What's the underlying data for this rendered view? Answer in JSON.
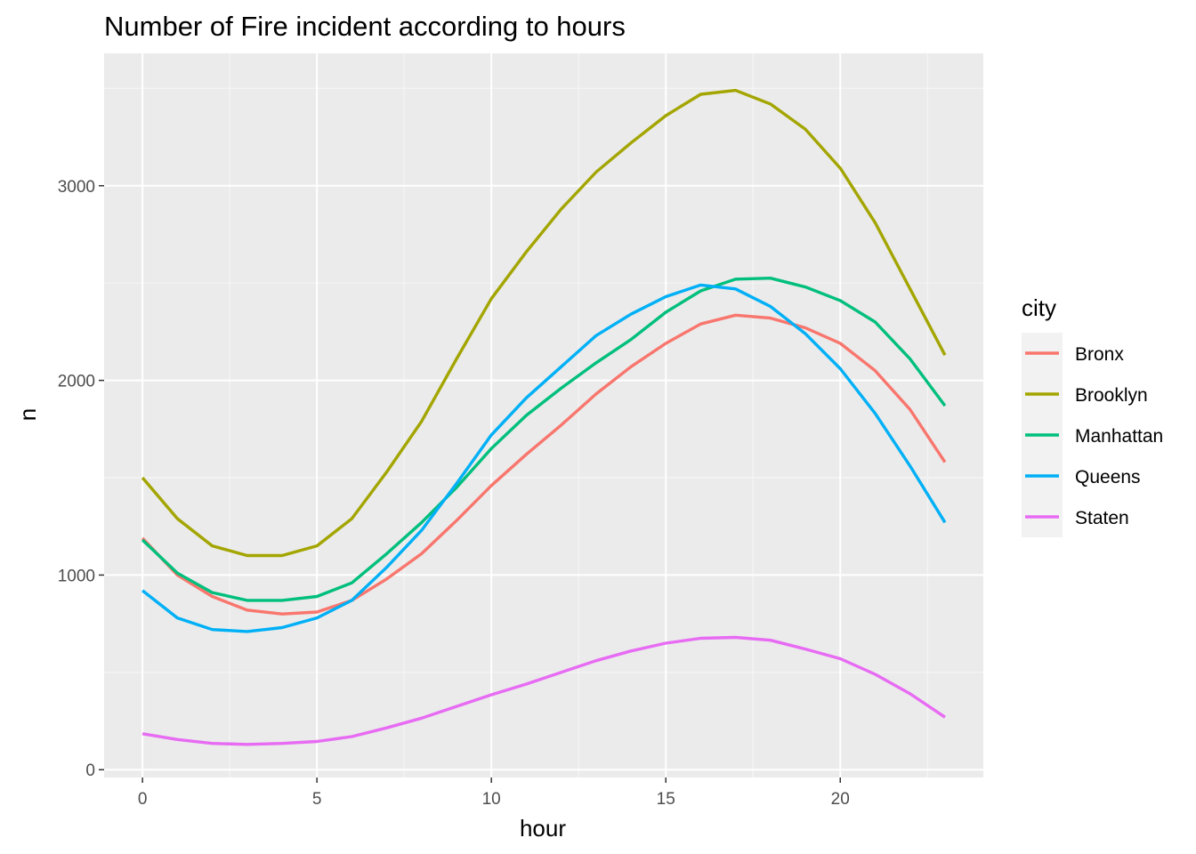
{
  "chart_data": {
    "type": "line",
    "title": "Number of Fire incident according to hours",
    "xlabel": "hour",
    "ylabel": "n",
    "xlim": [
      -1.1,
      24.1
    ],
    "ylim": [
      -40,
      3680
    ],
    "x_ticks": [
      0,
      5,
      10,
      15,
      20
    ],
    "y_ticks": [
      0,
      1000,
      2000,
      3000
    ],
    "grid": true,
    "legend": {
      "title": "city",
      "position": "right"
    },
    "x": [
      0,
      1,
      2,
      3,
      4,
      5,
      6,
      7,
      8,
      9,
      10,
      11,
      12,
      13,
      14,
      15,
      16,
      17,
      18,
      19,
      20,
      21,
      22,
      23
    ],
    "series": [
      {
        "name": "Bronx",
        "color": "#F8766D",
        "values": [
          1190,
          1000,
          890,
          820,
          800,
          810,
          870,
          980,
          1110,
          1280,
          1460,
          1620,
          1770,
          1930,
          2070,
          2190,
          2290,
          2335,
          2320,
          2270,
          2190,
          2050,
          1850,
          1580
        ]
      },
      {
        "name": "Brooklyn",
        "color": "#A3A500",
        "values": [
          1500,
          1290,
          1150,
          1100,
          1100,
          1150,
          1290,
          1530,
          1790,
          2110,
          2420,
          2660,
          2880,
          3070,
          3220,
          3360,
          3470,
          3490,
          3420,
          3290,
          3090,
          2810,
          2470,
          2130
        ]
      },
      {
        "name": "Manhattan",
        "color": "#00BF7D",
        "values": [
          1180,
          1010,
          910,
          870,
          870,
          890,
          960,
          1110,
          1270,
          1450,
          1650,
          1820,
          1960,
          2090,
          2210,
          2350,
          2460,
          2520,
          2525,
          2480,
          2410,
          2300,
          2110,
          1870
        ]
      },
      {
        "name": "Queens",
        "color": "#00B0F6",
        "values": [
          920,
          780,
          720,
          710,
          730,
          780,
          870,
          1040,
          1230,
          1470,
          1720,
          1910,
          2070,
          2230,
          2340,
          2430,
          2490,
          2470,
          2380,
          2240,
          2060,
          1830,
          1560,
          1270
        ]
      },
      {
        "name": "Staten",
        "color": "#E76BF3",
        "values": [
          185,
          155,
          135,
          130,
          135,
          145,
          170,
          215,
          265,
          325,
          385,
          440,
          500,
          560,
          610,
          650,
          675,
          680,
          665,
          620,
          570,
          490,
          390,
          270
        ]
      }
    ]
  }
}
